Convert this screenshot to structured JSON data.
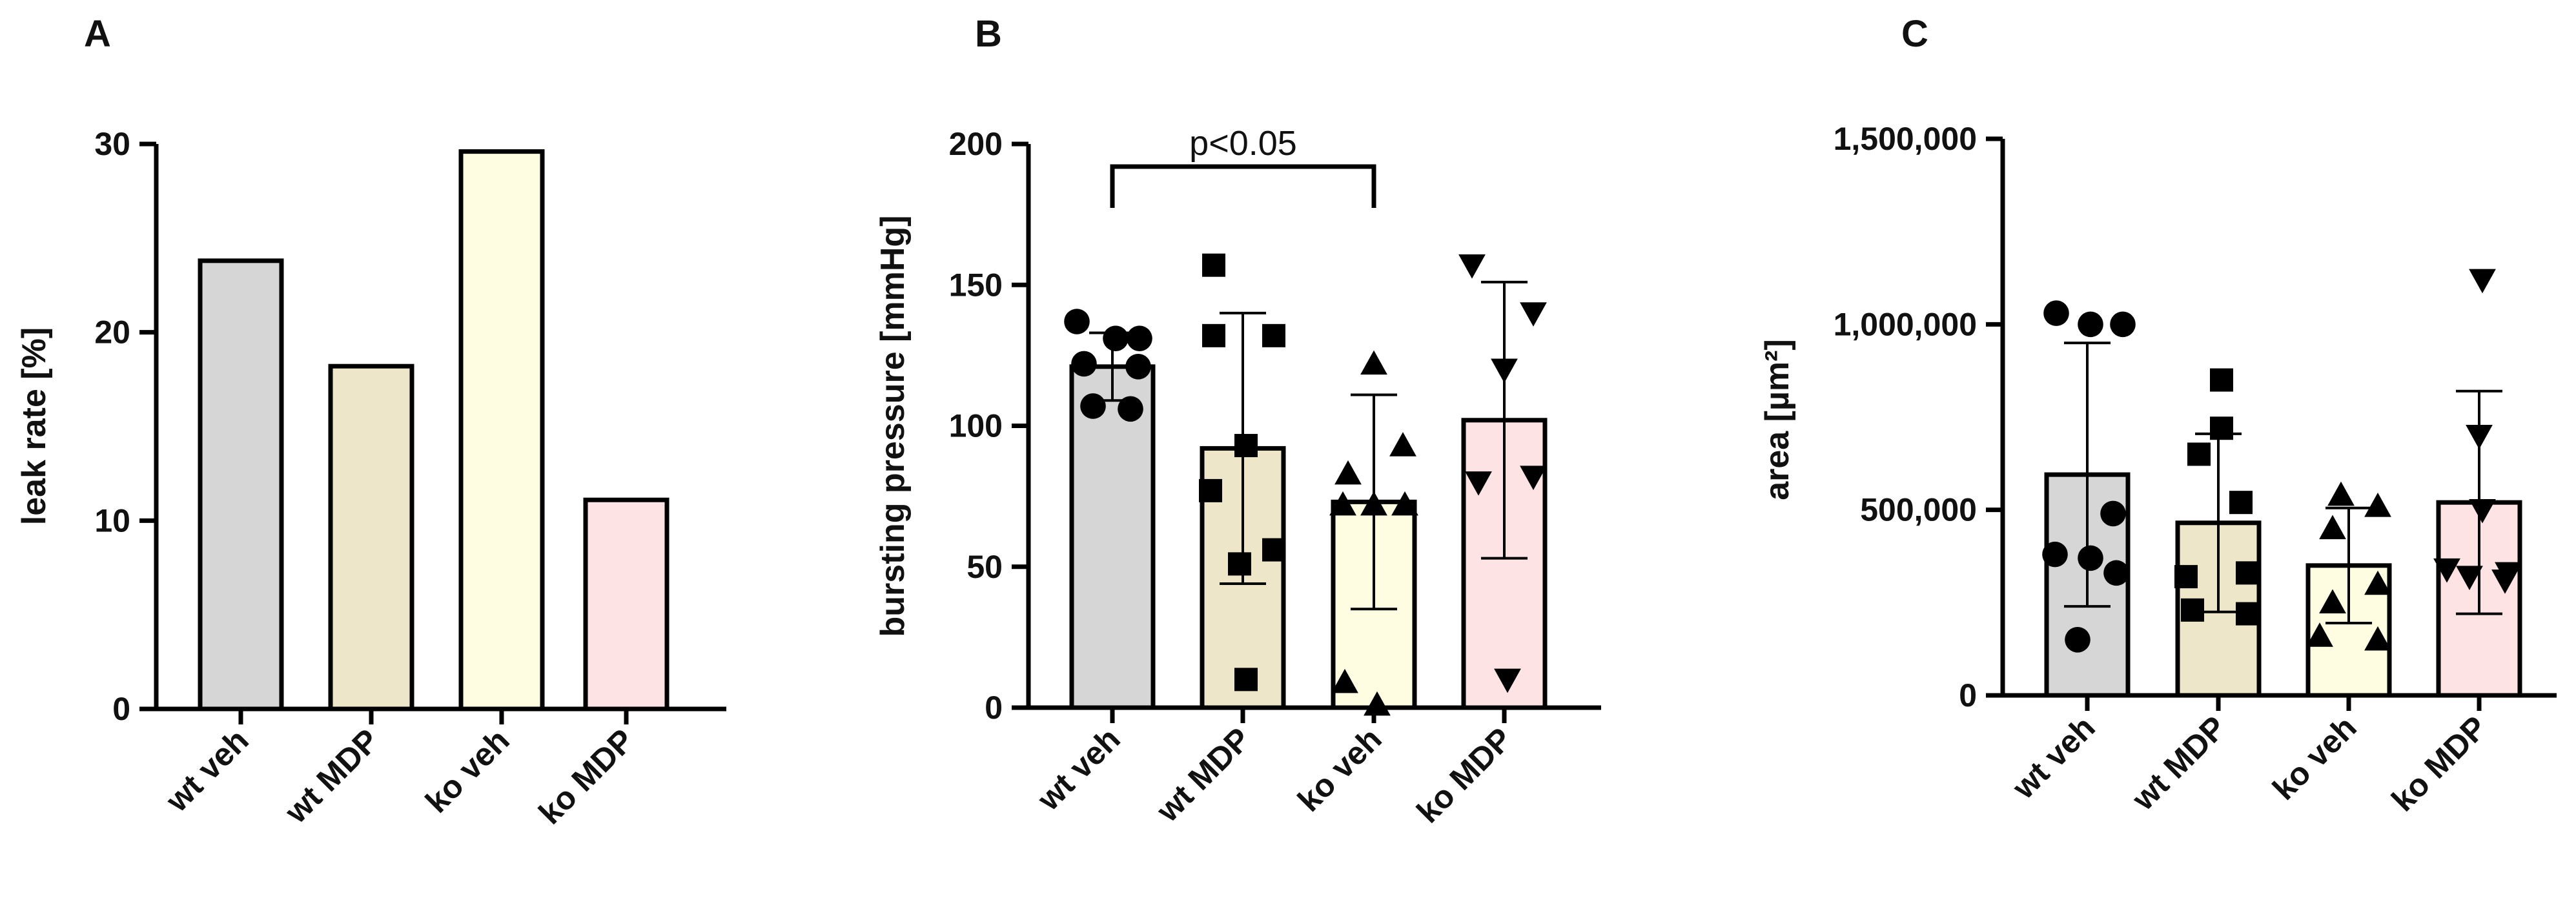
{
  "chart_data": [
    {
      "type": "bar",
      "panel_label": "A",
      "ylabel": "leak rate [%]",
      "categories": [
        "wt veh",
        "wt MDP",
        "ko veh",
        "ko MDP"
      ],
      "values": [
        23.8,
        18.2,
        29.6,
        11.1
      ],
      "colors": [
        "#d6d6d6",
        "#ede6c8",
        "#fefde2",
        "#fde3e3"
      ],
      "ylim": [
        0,
        30
      ],
      "yticks": [
        0,
        10,
        20,
        30
      ],
      "ytick_labels": [
        "0",
        "10",
        "20",
        "30"
      ]
    },
    {
      "type": "bar",
      "panel_label": "B",
      "ylabel": "bursting pressure [mmHg]",
      "categories": [
        "wt veh",
        "wt MDP",
        "ko veh",
        "ko MDP"
      ],
      "values": [
        121,
        92,
        73,
        102
      ],
      "sd": [
        12,
        48,
        38,
        49
      ],
      "colors": [
        "#d6d6d6",
        "#ede6c8",
        "#fefde2",
        "#fde3e3"
      ],
      "markers": [
        "circle",
        "square",
        "triangle-up",
        "triangle-down"
      ],
      "points": [
        [
          137,
          131,
          131,
          122,
          121,
          107,
          106
        ],
        [
          157,
          132,
          132,
          93,
          77,
          56,
          51,
          10
        ],
        [
          122,
          93,
          83,
          72,
          72,
          72,
          9,
          1
        ],
        [
          157,
          140,
          120,
          82,
          80,
          10
        ]
      ],
      "ylim": [
        0,
        200
      ],
      "yticks": [
        0,
        50,
        100,
        150,
        200
      ],
      "ytick_labels": [
        "0",
        "50",
        "100",
        "150",
        "200"
      ],
      "annotation": {
        "text": "p<0.05",
        "from": "wt veh",
        "to": "ko veh"
      }
    },
    {
      "type": "bar",
      "panel_label": "C",
      "ylabel": "area [µm²]",
      "categories": [
        "wt veh",
        "wt MDP",
        "ko veh",
        "ko MDP"
      ],
      "values": [
        595000,
        465000,
        350000,
        520000
      ],
      "sd": [
        355000,
        240000,
        155000,
        300000
      ],
      "colors": [
        "#d6d6d6",
        "#ede6c8",
        "#fefde2",
        "#fde3e3"
      ],
      "markers": [
        "circle",
        "square",
        "triangle-up",
        "triangle-down"
      ],
      "points": [
        [
          1030000,
          1000000,
          1000000,
          490000,
          380000,
          370000,
          330000,
          150000
        ],
        [
          850000,
          720000,
          650000,
          520000,
          330000,
          320000,
          230000,
          220000
        ],
        [
          540000,
          510000,
          450000,
          300000,
          250000,
          160000,
          150000
        ],
        [
          1120000,
          700000,
          500000,
          340000,
          330000,
          320000,
          310000
        ]
      ],
      "ylim": [
        0,
        1500000
      ],
      "yticks": [
        0,
        500000,
        1000000,
        1500000
      ],
      "ytick_labels": [
        "0",
        "500,000",
        "1,000,000",
        "1,500,000"
      ]
    }
  ]
}
